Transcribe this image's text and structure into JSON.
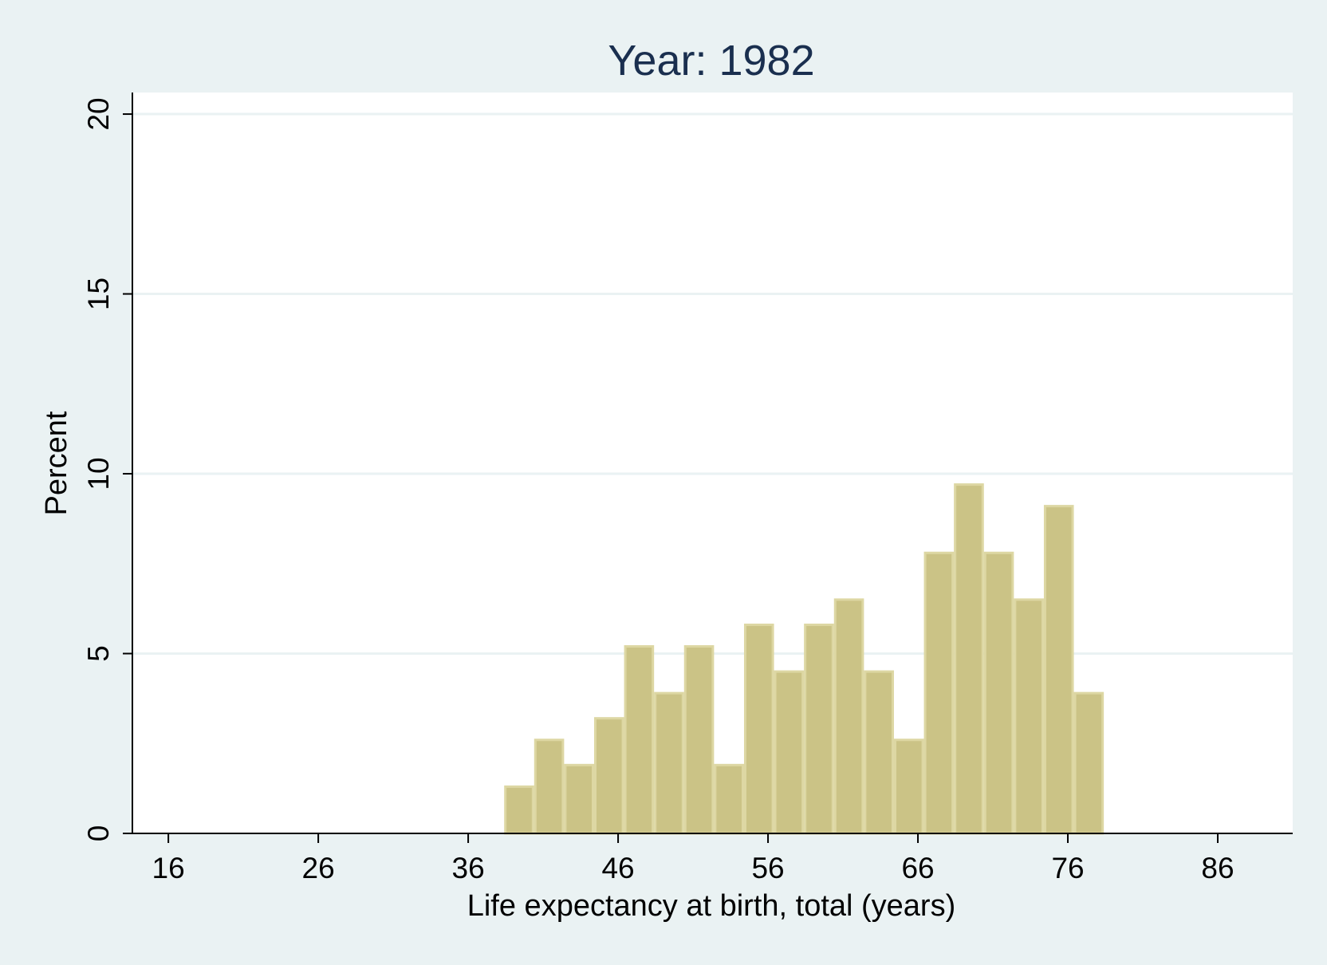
{
  "chart_data": {
    "type": "bar",
    "title": "Year: 1982",
    "xlabel": "Life expectancy at birth, total (years)",
    "ylabel": "Percent",
    "xlim": [
      13.6,
      91
    ],
    "ylim": [
      0,
      20.6
    ],
    "xticks": [
      16,
      26,
      36,
      46,
      56,
      66,
      76,
      86
    ],
    "yticks": [
      0,
      5,
      10,
      15,
      20
    ],
    "grid": true,
    "bin_width": 2,
    "bins": [
      {
        "start": 38.4,
        "value": 1.3
      },
      {
        "start": 40.4,
        "value": 2.6
      },
      {
        "start": 42.4,
        "value": 1.9
      },
      {
        "start": 44.4,
        "value": 3.2
      },
      {
        "start": 46.4,
        "value": 5.2
      },
      {
        "start": 48.4,
        "value": 3.9
      },
      {
        "start": 50.4,
        "value": 5.2
      },
      {
        "start": 52.4,
        "value": 1.9
      },
      {
        "start": 54.4,
        "value": 5.8
      },
      {
        "start": 56.4,
        "value": 4.5
      },
      {
        "start": 58.4,
        "value": 5.8
      },
      {
        "start": 60.4,
        "value": 6.5
      },
      {
        "start": 62.4,
        "value": 4.5
      },
      {
        "start": 64.4,
        "value": 2.6
      },
      {
        "start": 66.4,
        "value": 7.8
      },
      {
        "start": 68.4,
        "value": 9.7
      },
      {
        "start": 70.4,
        "value": 7.8
      },
      {
        "start": 72.4,
        "value": 6.5
      },
      {
        "start": 74.4,
        "value": 9.1
      },
      {
        "start": 76.4,
        "value": 3.9
      }
    ],
    "colors": {
      "bar_fill": "#cbc386",
      "bar_edge": "#ddd7a3",
      "plot_bg": "#ffffff",
      "page_bg": "#eaf2f3"
    }
  }
}
